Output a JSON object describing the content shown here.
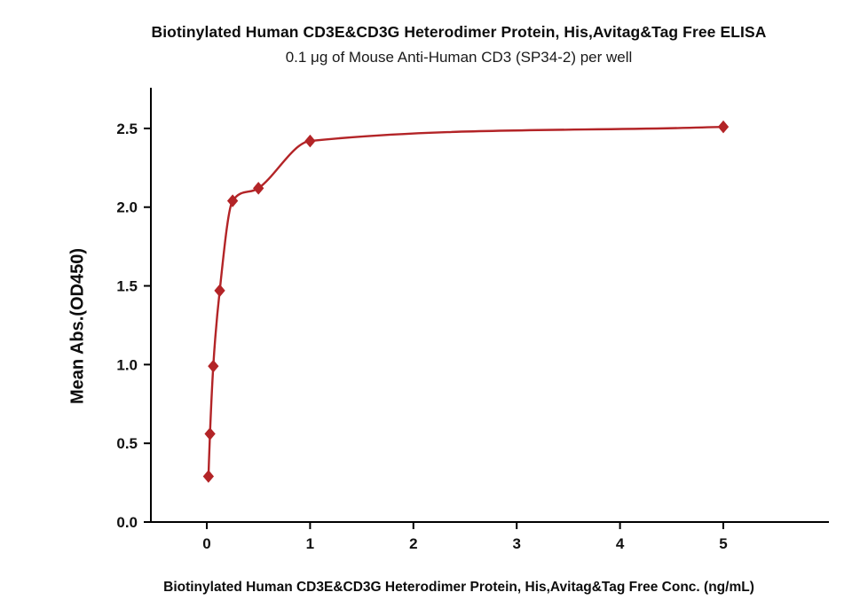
{
  "chart_data": {
    "type": "scatter",
    "title": "Biotinylated Human CD3E&CD3G Heterodimer Protein, His,Avitag&Tag Free ELISA",
    "subtitle": "0.1 μg of Mouse Anti-Human CD3 (SP34-2) per well",
    "xlabel": "Biotinylated Human CD3E&CD3G Heterodimer Protein, His,Avitag&Tag Free Conc. (ng/mL)",
    "ylabel": "Mean Abs.(OD450)",
    "x": [
      0.016,
      0.031,
      0.063,
      0.125,
      0.25,
      0.5,
      1,
      5
    ],
    "y": [
      0.29,
      0.56,
      0.99,
      1.47,
      2.04,
      2.12,
      2.42,
      2.51
    ],
    "fit": "smooth sigmoidal (4PL-style) curve through points",
    "x_ticks": [
      0,
      1,
      2,
      3,
      4,
      5
    ],
    "x_tick_labels": [
      "0",
      "1",
      "2",
      "3",
      "4",
      "5"
    ],
    "y_ticks": [
      0,
      0.5,
      1,
      1.5,
      2,
      2.5
    ],
    "y_tick_labels": [
      "0.0",
      "0.5",
      "1.0",
      "1.5",
      "2.0",
      "2.5"
    ],
    "xlim": [
      -0.54,
      6.02
    ],
    "ylim": [
      0,
      2.75
    ],
    "grid": false,
    "legend": "none",
    "accent_color": "#b32427",
    "axis_color": "#000000",
    "marker": "diamond"
  }
}
